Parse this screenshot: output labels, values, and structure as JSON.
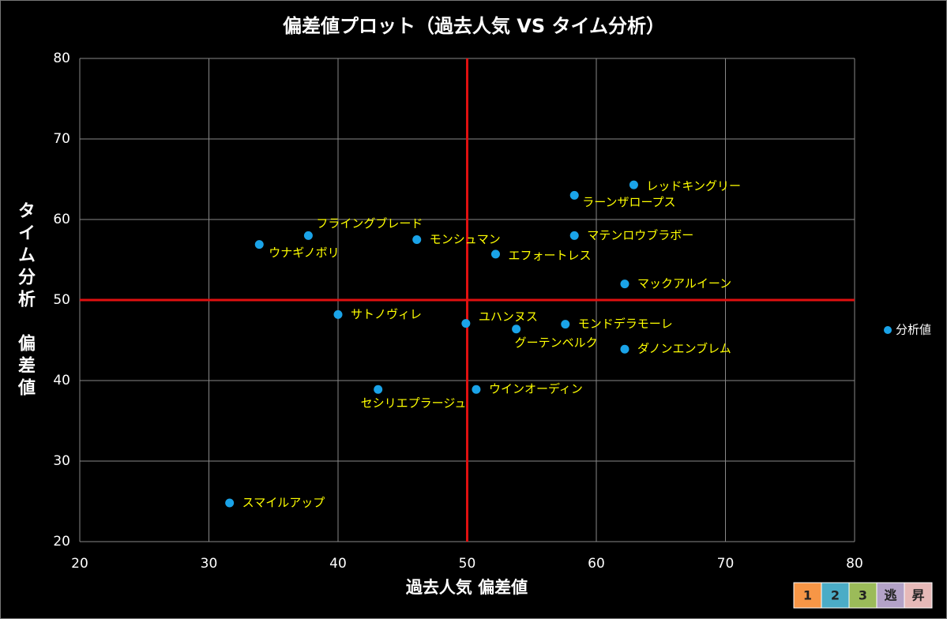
{
  "chart_data": {
    "type": "scatter",
    "title": "偏差値プロット（過去人気 VS タイム分析）",
    "x_label": "過去人気 偏差値",
    "y_label": "タイム分析　偏差値",
    "xlim": [
      20,
      80
    ],
    "xticks": [
      20,
      30,
      40,
      50,
      60,
      70,
      80
    ],
    "ylim": [
      20,
      80
    ],
    "yticks": [
      20,
      30,
      40,
      50,
      60,
      70,
      80
    ],
    "grid": true,
    "reference_lines": {
      "x": 50,
      "y": 50,
      "color": "#e01010"
    },
    "legend_position": "right",
    "series": [
      {
        "name": "分析値",
        "color": "#1aa3e8",
        "label_color": "#ffff00",
        "point_labels": [
          "レッドキングリー",
          "ラーンザロープス",
          "マテンロウブラボー",
          "フライングブレード",
          "ウナギノボリ",
          "モンシュマン",
          "エフォートレス",
          "マックアルイーン",
          "サトノヴィレ",
          "ユハンヌス",
          "グーテンベルク",
          "モンドデラモーレ",
          "ダノンエンブレム",
          "ウインオーディン",
          "セシリエプラージュ",
          "スマイルアップ"
        ],
        "x": [
          62.9,
          58.3,
          58.3,
          37.7,
          33.9,
          46.1,
          52.2,
          62.2,
          40.0,
          49.9,
          53.8,
          57.6,
          62.2,
          50.7,
          43.1,
          31.6
        ],
        "values": [
          64.3,
          63.0,
          58.0,
          58.0,
          56.9,
          57.5,
          55.7,
          52.0,
          48.2,
          47.1,
          46.4,
          47.0,
          43.9,
          38.9,
          38.9,
          24.8
        ]
      }
    ],
    "badges": [
      {
        "label": "1",
        "color": "#f79646"
      },
      {
        "label": "2",
        "color": "#4bacc6"
      },
      {
        "label": "3",
        "color": "#9bbb59"
      },
      {
        "label": "逃",
        "color": "#b3a2c7"
      },
      {
        "label": "昇",
        "color": "#e6b9b8"
      }
    ]
  }
}
